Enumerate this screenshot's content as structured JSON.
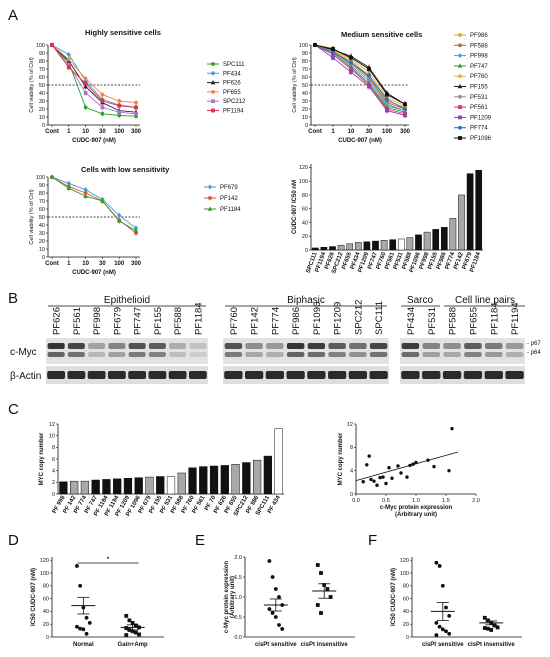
{
  "panel_labels": {
    "A": "A",
    "B": "B",
    "C": "C",
    "D": "D",
    "E": "E",
    "F": "F"
  },
  "chart_data": [
    {
      "id": "A1",
      "type": "line",
      "title": "Highly sensitive cells",
      "xlabel": "CUDC-907 (nM)",
      "ylabel": "Cell viability (% of Ctrl)",
      "categories": [
        "Cont",
        "1",
        "10",
        "30",
        "100",
        "300"
      ],
      "ylim": [
        0,
        100
      ],
      "yticks": [
        0,
        10,
        20,
        30,
        40,
        50,
        60,
        70,
        80,
        90,
        100
      ],
      "ref_y": 50,
      "legend_placement": "right",
      "series": [
        {
          "name": "SPC111",
          "color": "#2ca02c",
          "marker": "circle",
          "values": [
            100,
            78,
            22,
            14,
            12,
            11
          ]
        },
        {
          "name": "PF434",
          "color": "#3aa0d8",
          "marker": "diamond",
          "values": [
            100,
            88,
            55,
            32,
            25,
            22
          ]
        },
        {
          "name": "PF626",
          "color": "#222222",
          "marker": "triangle",
          "values": [
            100,
            80,
            48,
            28,
            18,
            16
          ]
        },
        {
          "name": "PF655",
          "color": "#ee8844",
          "marker": "circle",
          "values": [
            100,
            82,
            58,
            38,
            30,
            28
          ]
        },
        {
          "name": "SPC212",
          "color": "#b070d0",
          "marker": "square",
          "values": [
            100,
            75,
            40,
            22,
            16,
            14
          ]
        },
        {
          "name": "PF1194",
          "color": "#e03050",
          "marker": "square",
          "values": [
            100,
            72,
            52,
            30,
            24,
            22
          ]
        }
      ]
    },
    {
      "id": "A2",
      "type": "line",
      "title": "Medium sensitive cells",
      "xlabel": "CUDC-907 (nM)",
      "ylabel": "Cell viability (% of Ctrl)",
      "categories": [
        "Cont",
        "1",
        "10",
        "30",
        "100",
        "300"
      ],
      "ylim": [
        0,
        100
      ],
      "yticks": [
        0,
        10,
        20,
        30,
        40,
        50,
        60,
        70,
        80,
        90,
        100
      ],
      "ref_y": 50,
      "legend_placement": "right",
      "series": [
        {
          "name": "PF986",
          "color": "#e8a030",
          "marker": "circle",
          "values": [
            100,
            95,
            80,
            62,
            30,
            22
          ]
        },
        {
          "name": "PF588",
          "color": "#a07040",
          "marker": "circle",
          "values": [
            100,
            93,
            78,
            60,
            28,
            20
          ]
        },
        {
          "name": "PF998",
          "color": "#40a8c8",
          "marker": "diamond",
          "values": [
            100,
            92,
            74,
            55,
            24,
            18
          ]
        },
        {
          "name": "PF747",
          "color": "#2ca02c",
          "marker": "triangle",
          "values": [
            100,
            90,
            72,
            52,
            22,
            16
          ]
        },
        {
          "name": "PF760",
          "color": "#f0b040",
          "marker": "circle",
          "values": [
            100,
            96,
            82,
            66,
            34,
            24
          ]
        },
        {
          "name": "PF155",
          "color": "#222222",
          "marker": "triangle",
          "values": [
            100,
            94,
            86,
            72,
            40,
            26
          ]
        },
        {
          "name": "PF531",
          "color": "#909090",
          "marker": "circle",
          "values": [
            100,
            92,
            76,
            58,
            26,
            18
          ]
        },
        {
          "name": "PF561",
          "color": "#e03070",
          "marker": "square",
          "values": [
            100,
            88,
            70,
            50,
            20,
            14
          ]
        },
        {
          "name": "PF1209",
          "color": "#9040b0",
          "marker": "square",
          "values": [
            100,
            84,
            66,
            48,
            18,
            12
          ]
        },
        {
          "name": "PF774",
          "color": "#3070c0",
          "marker": "circle",
          "values": [
            100,
            90,
            78,
            62,
            32,
            20
          ]
        },
        {
          "name": "PF1096",
          "color": "#111111",
          "marker": "square",
          "values": [
            100,
            95,
            84,
            70,
            38,
            26
          ]
        }
      ]
    },
    {
      "id": "A3",
      "type": "line",
      "title": "Cells with low sensitivity",
      "xlabel": "CUDC-907 (nM)",
      "ylabel": "Cell viability (% of Ctrl)",
      "categories": [
        "Cont",
        "1",
        "10",
        "30",
        "100",
        "300"
      ],
      "ylim": [
        0,
        100
      ],
      "yticks": [
        0,
        10,
        20,
        30,
        40,
        50,
        60,
        70,
        80,
        90,
        100
      ],
      "ref_y": 50,
      "legend_placement": "right",
      "series": [
        {
          "name": "PF679",
          "color": "#3aa0d8",
          "marker": "diamond",
          "values": [
            100,
            92,
            84,
            72,
            52,
            36
          ]
        },
        {
          "name": "PF142",
          "color": "#e05030",
          "marker": "circle",
          "values": [
            100,
            88,
            80,
            70,
            46,
            30
          ]
        },
        {
          "name": "PF1184",
          "color": "#2ca02c",
          "marker": "triangle",
          "values": [
            100,
            86,
            76,
            70,
            45,
            33
          ]
        }
      ]
    },
    {
      "id": "A4",
      "type": "bar",
      "ylabel": "CUDC-907 IC50 nM",
      "ylim": [
        0,
        125
      ],
      "yticks": [
        0,
        20,
        40,
        60,
        80,
        100,
        120
      ],
      "categories": [
        "SPC111",
        "PF1194",
        "PF626",
        "SPC212",
        "PF655",
        "PF434",
        "PF1209",
        "PF747",
        "PF760",
        "PF561",
        "PF531",
        "PF588",
        "PF1096",
        "PF998",
        "PF155",
        "PF986",
        "PF774",
        "PF142",
        "PF679",
        "PF1184"
      ],
      "values": [
        3,
        4,
        5,
        7,
        9,
        11,
        12,
        13,
        14,
        15,
        16,
        18,
        22,
        26,
        30,
        33,
        46,
        80,
        111,
        116
      ],
      "fills": [
        "k",
        "k",
        "k",
        "g",
        "g",
        "g",
        "k",
        "k",
        "g",
        "k",
        "w",
        "g",
        "k",
        "g",
        "k",
        "k",
        "g",
        "g",
        "k",
        "k"
      ]
    },
    {
      "id": "C1",
      "type": "bar",
      "ylabel": "MYC copy number",
      "ylim": [
        0,
        12
      ],
      "yticks": [
        0,
        2,
        4,
        6,
        8,
        10,
        12
      ],
      "categories": [
        "PF 998",
        "PF 142",
        "PF 774",
        "PF 747",
        "PF 1184",
        "PF 1194",
        "PF 1209",
        "PF 1096",
        "PF 679",
        "PF 155",
        "PF 531",
        "PF 588",
        "PF 760",
        "PF 561",
        "PF 70",
        "PF 626",
        "PF 655",
        "SPC212",
        "PF 986",
        "SPC111",
        "PF 434"
      ],
      "values": [
        2.1,
        2.2,
        2.2,
        2.4,
        2.5,
        2.6,
        2.7,
        2.8,
        2.9,
        3.0,
        3.0,
        3.6,
        4.5,
        4.7,
        4.8,
        4.9,
        5.1,
        5.4,
        5.8,
        6.5,
        11.2
      ],
      "fills": [
        "k",
        "g",
        "g",
        "k",
        "k",
        "k",
        "k",
        "k",
        "g",
        "k",
        "w",
        "g",
        "k",
        "k",
        "k",
        "k",
        "g",
        "k",
        "g",
        "k",
        "w"
      ]
    },
    {
      "id": "C2",
      "type": "scatter",
      "xlabel": "c-Myc protein expression",
      "xlabel2": "(Arbitrary unit)",
      "ylabel": "MYC copy number",
      "xlim": [
        0,
        2
      ],
      "xticks": [
        "0.0",
        "0.5",
        "1.0",
        "1.5",
        "2.0"
      ],
      "ylim": [
        0,
        12
      ],
      "yticks": [
        0,
        4,
        8,
        12
      ],
      "x": [
        0.12,
        0.18,
        0.22,
        0.25,
        0.3,
        0.35,
        0.4,
        0.45,
        0.5,
        0.55,
        0.6,
        0.7,
        0.75,
        0.85,
        0.9,
        0.95,
        1.0,
        1.2,
        1.3,
        1.55,
        1.6
      ],
      "y": [
        2.1,
        5.0,
        6.5,
        2.5,
        2.2,
        1.5,
        2.8,
        2.9,
        1.8,
        4.5,
        2.7,
        4.8,
        3.6,
        2.9,
        4.9,
        5.1,
        5.4,
        5.8,
        4.7,
        4.0,
        11.2
      ],
      "fit": [
        [
          0,
          2.3
        ],
        [
          1.7,
          7.2
        ]
      ]
    },
    {
      "id": "D",
      "type": "scatter",
      "ylabel": "IC50 CUDC-907 (nM)",
      "categories": [
        "Normal",
        "Gain+Amp"
      ],
      "ylim": [
        0,
        125
      ],
      "yticks": [
        0,
        20,
        40,
        60,
        80,
        100,
        120
      ],
      "series": [
        {
          "name": "Normal",
          "marker": "circle",
          "values": [
            111,
            80,
            46,
            30,
            22,
            16,
            13,
            12,
            5
          ],
          "mean": 49,
          "sem": 13
        },
        {
          "name": "Gain+Amp",
          "marker": "square",
          "values": [
            33,
            26,
            22,
            18,
            15,
            14,
            11,
            9,
            7,
            4,
            3
          ],
          "mean": 15,
          "sem": 4
        }
      ],
      "significance": "*"
    },
    {
      "id": "E",
      "type": "scatter",
      "ylabel": "c-Myc protein expression",
      "ylabel2": "(Arbitrary unit)",
      "categories": [
        "cisPt sensitive",
        "cisPt insensitive"
      ],
      "ylim": [
        0,
        2.0
      ],
      "yticks": [
        "0.0",
        "0.5",
        "1.0",
        "1.5",
        "2.0"
      ],
      "series": [
        {
          "name": "cisPt sensitive",
          "marker": "circle",
          "values": [
            1.9,
            1.5,
            1.2,
            1.0,
            0.8,
            0.7,
            0.6,
            0.5,
            0.3,
            0.2
          ],
          "mean": 0.8,
          "sem": 0.15
        },
        {
          "name": "cisPt insensitive",
          "marker": "square",
          "values": [
            1.8,
            1.6,
            1.3,
            1.2,
            1.0,
            0.8,
            0.6
          ],
          "mean": 1.15,
          "sem": 0.18
        }
      ]
    },
    {
      "id": "F",
      "type": "scatter",
      "ylabel": "IC50 CUDC-907 (nM)",
      "categories": [
        "cisPt sensitive",
        "cisPt insensitive"
      ],
      "ylim": [
        0,
        125
      ],
      "yticks": [
        0,
        20,
        40,
        60,
        80,
        100,
        120
      ],
      "series": [
        {
          "name": "cisPt sensitive",
          "marker": "circle",
          "values": [
            116,
            111,
            80,
            46,
            33,
            22,
            16,
            12,
            9,
            5,
            3
          ],
          "mean": 40,
          "sem": 14
        },
        {
          "name": "cisPt insensitive",
          "marker": "square",
          "values": [
            30,
            26,
            22,
            18,
            15,
            14,
            13,
            11
          ],
          "mean": 22,
          "sem": 3
        }
      ]
    }
  ],
  "blot": {
    "groups": [
      "Epithelioid",
      "Biphasic",
      "Sarco",
      "Cell line pairs"
    ],
    "lanes1": [
      "PF626",
      "PF561",
      "PF998",
      "PF679",
      "PF747",
      "PF155",
      "PF588",
      "PF1184"
    ],
    "lanes2": [
      "PF760",
      "PF142",
      "PF774",
      "PF986",
      "PF1096",
      "PF1209",
      "SPC212",
      "SPC111"
    ],
    "lanes3": [
      "PF434",
      "PF531",
      "PF588",
      "PF655",
      "PF1184",
      "PF1194"
    ],
    "row_labels": [
      "c-Myc",
      "β-Actin"
    ],
    "band_labels": [
      "p67",
      "p64"
    ],
    "cmyc_intensity1": [
      0.9,
      0.8,
      0.35,
      0.5,
      0.75,
      0.7,
      0.3,
      0.2
    ],
    "cmyc_intensity2": [
      0.75,
      0.45,
      0.4,
      0.9,
      0.85,
      0.7,
      0.6,
      0.8
    ],
    "cmyc_intensity3": [
      0.85,
      0.5,
      0.45,
      0.7,
      0.55,
      0.4
    ]
  }
}
